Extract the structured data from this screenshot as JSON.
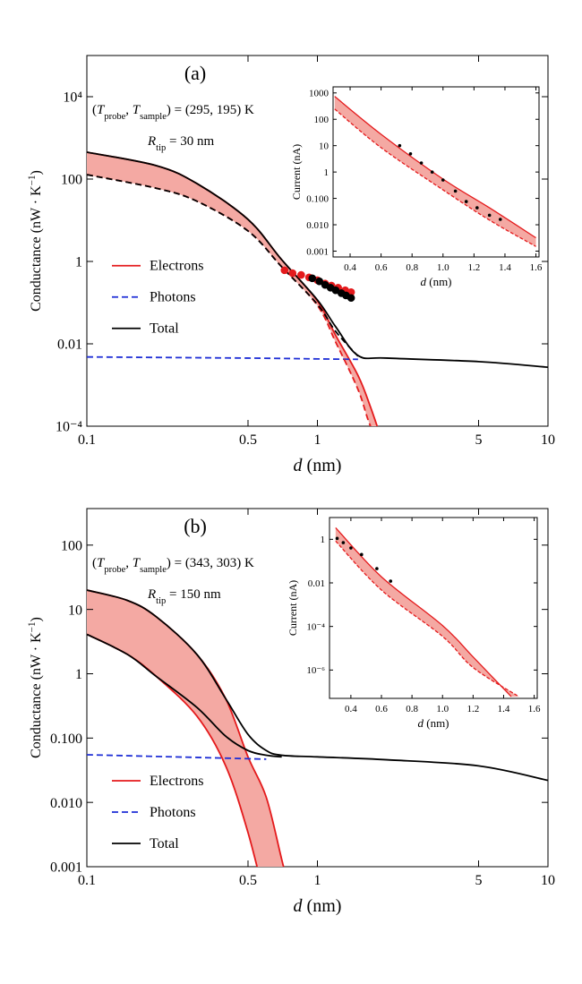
{
  "chart_data": [
    {
      "type": "line",
      "panel_label": "(a)",
      "annotations": [
        {
          "parts": [
            {
              "text": "("
            },
            {
              "text": "T",
              "italic": true
            },
            {
              "text": "probe",
              "sub": true
            },
            {
              "text": ", "
            },
            {
              "text": "T",
              "italic": true
            },
            {
              "text": "sample",
              "sub": true
            },
            {
              "text": ") = (295, 195) K"
            }
          ]
        },
        {
          "parts": [
            {
              "text": "R",
              "italic": true
            },
            {
              "text": "tip",
              "sub": true
            },
            {
              "text": " = 30 nm"
            }
          ]
        }
      ],
      "x_label": {
        "parts": [
          {
            "text": "d",
            "italic": true
          },
          {
            "text": " (nm)"
          }
        ]
      },
      "y_label": {
        "parts": [
          {
            "text": "Conductance (nW · K"
          },
          {
            "text": "−1",
            "sup": true
          },
          {
            "text": ")"
          }
        ]
      },
      "xlog": true,
      "ylog": true,
      "xlim": [
        0.1,
        10
      ],
      "ylim": [
        0.0001,
        100000
      ],
      "xticks": [
        0.1,
        0.5,
        1,
        5,
        10
      ],
      "yticks": [
        {
          "value": 10000,
          "label": "10⁴"
        },
        100,
        1,
        0.01,
        {
          "value": 0.0001,
          "label": "10⁻⁴"
        }
      ],
      "legend": "center left",
      "band": [
        0,
        3
      ],
      "band_color": "#f4a9a3",
      "series": [
        {
          "name": "Electrons",
          "color": "#e41a1c",
          "x": [
            0.1,
            0.2,
            0.3,
            0.5,
            0.7,
            1,
            1.2,
            1.5,
            1.7,
            2
          ],
          "values": [
            449,
            212,
            78,
            10.5,
            1.1,
            0.11,
            0.016,
            0.0017,
            0.00029,
            2e-05
          ]
        },
        {
          "name": "Photons",
          "color": "#1f2fd6",
          "dash": true,
          "x": [
            0.1,
            0.5,
            1,
            1.5
          ],
          "values": [
            0.0048,
            0.0045,
            0.0043,
            0.0042
          ]
        },
        {
          "name": "Total",
          "color": "#000000",
          "x": [
            0.1,
            0.2,
            0.3,
            0.5,
            0.7,
            1,
            1.2,
            1.5,
            2,
            5,
            10
          ],
          "values": [
            449,
            212,
            78,
            10.5,
            1.1,
            0.116,
            0.026,
            0.0052,
            0.0045,
            0.0037,
            0.0027
          ]
        },
        {
          "color": "#e41a1c",
          "dash": true,
          "x": [
            0.1,
            0.2,
            0.3,
            0.5,
            0.7,
            1,
            1.2,
            1.5,
            1.7,
            2
          ],
          "values": [
            128,
            60,
            29,
            5.5,
            0.74,
            0.085,
            0.011,
            0.00078,
            0.0001,
            2e-05
          ]
        },
        {
          "color": "#000000",
          "dash": true,
          "x": [
            0.1,
            0.2,
            0.3,
            0.5,
            0.7,
            1,
            1.2,
            1.5
          ],
          "values": [
            128,
            60,
            29,
            5.5,
            0.74,
            0.091,
            0.02,
            0.005
          ]
        },
        {
          "color": "#e41a1c",
          "points": true,
          "x": [
            0.72,
            0.78,
            0.85,
            0.92,
            1,
            1.08,
            1.15,
            1.23,
            1.32,
            1.4
          ],
          "values": [
            0.61,
            0.52,
            0.47,
            0.41,
            0.35,
            0.29,
            0.26,
            0.23,
            0.2,
            0.18
          ]
        },
        {
          "color": "#000000",
          "points": true,
          "x": [
            0.95,
            1.02,
            1.08,
            1.14,
            1.2,
            1.27,
            1.33,
            1.4
          ],
          "values": [
            0.39,
            0.33,
            0.27,
            0.23,
            0.2,
            0.17,
            0.15,
            0.13
          ]
        }
      ]
    },
    {
      "type": "line",
      "inset": true,
      "x_label": {
        "parts": [
          {
            "text": "d",
            "italic": true
          },
          {
            "text": " (nm)"
          }
        ]
      },
      "y_label": {
        "parts": [
          {
            "text": "Current (nA)"
          }
        ]
      },
      "xlog": false,
      "ylog": true,
      "xlim": [
        0.29,
        1.62
      ],
      "ylim": [
        0.0006,
        1700
      ],
      "xticks": [
        0.4,
        0.6,
        0.8,
        {
          "value": 1,
          "label": "1.0"
        },
        1.2,
        1.4,
        1.6
      ],
      "yticks": [
        1000,
        100,
        10,
        1,
        {
          "value": 0.1,
          "label": "0.100"
        },
        {
          "value": 0.01,
          "label": "0.010"
        },
        0.001
      ],
      "band": [
        0,
        1
      ],
      "band_color": "#f4a9a3",
      "series": [
        {
          "color": "#e41a1c",
          "x": [
            0.3,
            0.6,
            1.0,
            1.3,
            1.6
          ],
          "values": [
            740,
            27,
            0.54,
            0.044,
            0.0032
          ]
        },
        {
          "color": "#e41a1c",
          "dash": true,
          "x": [
            0.3,
            0.6,
            1.0,
            1.3,
            1.6
          ],
          "values": [
            245,
            8.4,
            0.21,
            0.015,
            0.0015
          ]
        },
        {
          "color": "#000000",
          "points": true,
          "x": [
            0.72,
            0.79,
            0.86,
            0.93,
            1.0,
            1.08,
            1.15,
            1.22,
            1.3,
            1.37
          ],
          "values": [
            10,
            4.9,
            2.2,
            1.0,
            0.5,
            0.19,
            0.076,
            0.044,
            0.023,
            0.016
          ]
        }
      ]
    },
    {
      "type": "line",
      "panel_label": "(b)",
      "annotations": [
        {
          "parts": [
            {
              "text": "("
            },
            {
              "text": "T",
              "italic": true
            },
            {
              "text": "probe",
              "sub": true
            },
            {
              "text": ", "
            },
            {
              "text": "T",
              "italic": true
            },
            {
              "text": "sample",
              "sub": true
            },
            {
              "text": ") = (343, 303) K"
            }
          ]
        },
        {
          "parts": [
            {
              "text": "R",
              "italic": true
            },
            {
              "text": "tip",
              "sub": true
            },
            {
              "text": " = 150 nm"
            }
          ]
        }
      ],
      "x_label": {
        "parts": [
          {
            "text": "d",
            "italic": true
          },
          {
            "text": " (nm)"
          }
        ]
      },
      "y_label": {
        "parts": [
          {
            "text": "Conductance (nW · K"
          },
          {
            "text": "−1",
            "sup": true
          },
          {
            "text": ")"
          }
        ]
      },
      "xlog": true,
      "ylog": true,
      "xlim": [
        0.1,
        10
      ],
      "ylim": [
        0.001,
        370
      ],
      "xticks": [
        0.1,
        0.5,
        1,
        5,
        10
      ],
      "yticks": [
        100,
        10,
        1,
        {
          "value": 0.1,
          "label": "0.100"
        },
        {
          "value": 0.01,
          "label": "0.010"
        },
        0.001
      ],
      "legend": "lower left",
      "band": [
        0,
        3
      ],
      "band_color": "#f4a9a3",
      "series": [
        {
          "name": "Electrons",
          "color": "#e41a1c",
          "x": [
            0.1,
            0.15,
            0.2,
            0.3,
            0.4,
            0.5,
            0.6,
            0.7,
            0.8
          ],
          "values": [
            20,
            13.8,
            7.7,
            2.0,
            0.41,
            0.051,
            0.012,
            0.0013,
            0.00019
          ]
        },
        {
          "name": "Photons",
          "color": "#1f2fd6",
          "dash": true,
          "x": [
            0.1,
            0.3,
            0.6
          ],
          "values": [
            0.055,
            0.05,
            0.047
          ]
        },
        {
          "name": "Total",
          "color": "#000000",
          "x": [
            0.1,
            0.15,
            0.2,
            0.3,
            0.4,
            0.5,
            0.6,
            0.7,
            1,
            2,
            5,
            10
          ],
          "values": [
            20,
            13.8,
            7.7,
            2.0,
            0.41,
            0.114,
            0.064,
            0.054,
            0.051,
            0.046,
            0.037,
            0.022
          ]
        },
        {
          "color": "#e41a1c",
          "x": [
            0.1,
            0.15,
            0.2,
            0.3,
            0.4,
            0.5,
            0.6
          ],
          "values": [
            4.1,
            2.0,
            0.91,
            0.22,
            0.037,
            0.0034,
            0.00026
          ]
        },
        {
          "color": "#000000",
          "x": [
            0.1,
            0.15,
            0.2,
            0.3,
            0.4,
            0.5,
            0.6,
            0.7
          ],
          "values": [
            4.1,
            2.0,
            0.91,
            0.3,
            0.107,
            0.064,
            0.054,
            0.051
          ]
        }
      ]
    },
    {
      "type": "line",
      "inset": true,
      "x_label": {
        "parts": [
          {
            "text": "d",
            "italic": true
          },
          {
            "text": " (nm)"
          }
        ]
      },
      "y_label": {
        "parts": [
          {
            "text": "Current (nA)"
          }
        ]
      },
      "xlog": false,
      "ylog": true,
      "xlim": [
        0.26,
        1.62
      ],
      "ylim": [
        5e-08,
        10
      ],
      "xticks": [
        0.4,
        0.6,
        0.8,
        {
          "value": 1,
          "label": "1.0"
        },
        1.2,
        1.4,
        1.6
      ],
      "yticks": [
        1,
        0.01,
        {
          "value": 0.0001,
          "label": "10⁻⁴"
        },
        {
          "value": 1e-06,
          "label": "10⁻⁶"
        }
      ],
      "band": [
        0,
        1
      ],
      "band_color": "#f4a9a3",
      "series": [
        {
          "color": "#e41a1c",
          "x": [
            0.3,
            0.6,
            1.0,
            1.2,
            1.45
          ],
          "values": [
            3.4,
            0.019,
            0.00011,
            4e-06,
            6e-08
          ]
        },
        {
          "color": "#e41a1c",
          "dash": true,
          "x": [
            0.3,
            0.6,
            1.0,
            1.2,
            1.5
          ],
          "values": [
            0.83,
            0.0047,
            3.5e-05,
            1.3e-06,
            6e-08
          ]
        },
        {
          "color": "#000000",
          "points": true,
          "x": [
            0.31,
            0.35,
            0.4,
            0.47,
            0.57,
            0.66
          ],
          "values": [
            1.1,
            0.7,
            0.4,
            0.2,
            0.045,
            0.012
          ]
        }
      ]
    }
  ]
}
